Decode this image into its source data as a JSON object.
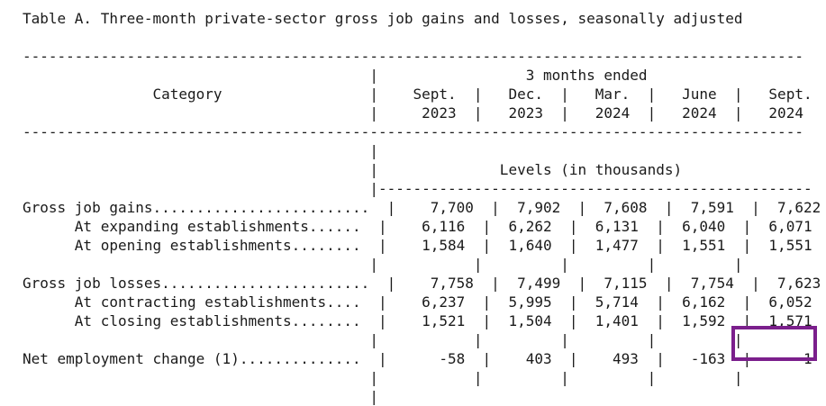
{
  "title": "Table A. Three-month private-sector gross job gains and losses, seasonally adjusted",
  "separator": "------------------------------------------------------------------------------------------",
  "header": {
    "line1": "                                        |                 3 months ended",
    "line2": "               Category                 |    Sept.  |   Dec.  |   Mar.  |   June  |   Sept.",
    "line3": "                                        |     2023  |   2023  |   2024  |   2024  |   2024"
  },
  "section": {
    "line1": "                                        |",
    "line2": "                                        |              Levels (in thousands)",
    "line3": "                                        |--------------------------------------------------"
  },
  "rows": [
    "Gross job gains.........................  |    7,700  |  7,902  |  7,608  |  7,591  |  7,622",
    "      At expanding establishments......  |    6,116  |  6,262  |  6,131  |  6,040  |  6,071",
    "      At opening establishments........  |    1,584  |  1,640  |  1,477  |  1,551  |  1,551",
    "                                        |           |         |         |         |",
    "Gross job losses........................  |    7,758  |  7,499  |  7,115  |  7,754  |  7,623",
    "      At contracting establishments....  |    6,237  |  5,995  |  5,714  |  6,162  |  6,052",
    "      At closing establishments........  |    1,521  |  1,504  |  1,401  |  1,592  |  1,571",
    "                                        |           |         |         |         |",
    "Net employment change (1)..............  |      -58  |    403  |    493  |   -163  |     -1",
    "                                        |           |         |         |         |",
    "                                        |"
  ],
  "highlight": {
    "label": "-1",
    "color": "#7b1f8c"
  }
}
